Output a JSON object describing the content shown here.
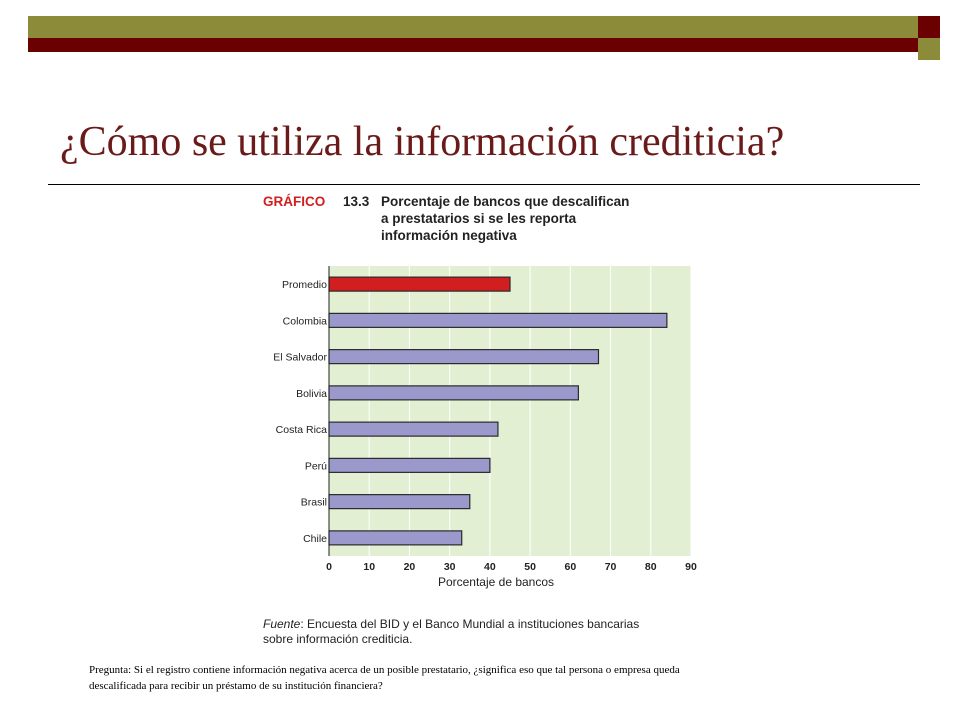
{
  "slide": {
    "title": "¿Cómo se utiliza la información crediticia?",
    "question_line1": "Pregunta: Si el registro contiene información negativa acerca de un posible prestatario, ¿significa eso que tal persona o empresa queda",
    "question_line2": "descalificada para recibir un préstamo de su institución financiera?"
  },
  "colors": {
    "olive": "#8b8b3a",
    "maroon": "#6b0000",
    "highlight_bar": "#d11f1f",
    "bar": "#9b99cc",
    "plot_bg": "#e3efd3"
  },
  "figure": {
    "label": "GRÁFICO",
    "number": "13.3",
    "title_line1": "Porcentaje de bancos que descalifican",
    "title_line2": "a prestatarios si se les reporta",
    "title_line3": "información negativa",
    "source_label": "Fuente",
    "source_line1": ": Encuesta del BID y el Banco Mundial a instituciones bancarias",
    "source_line2": "sobre información crediticia."
  },
  "chart_data": {
    "type": "bar",
    "orientation": "horizontal",
    "categories": [
      "Promedio",
      "Colombia",
      "El Salvador",
      "Bolivia",
      "Costa Rica",
      "Perú",
      "Brasil",
      "Chile"
    ],
    "values": [
      45,
      84,
      67,
      62,
      42,
      40,
      35,
      33
    ],
    "highlight": "Promedio",
    "xlabel": "Porcentaje de bancos",
    "xlim": [
      0,
      90
    ],
    "xticks": [
      0,
      10,
      20,
      30,
      40,
      50,
      60,
      70,
      80,
      90
    ],
    "grid": true
  }
}
